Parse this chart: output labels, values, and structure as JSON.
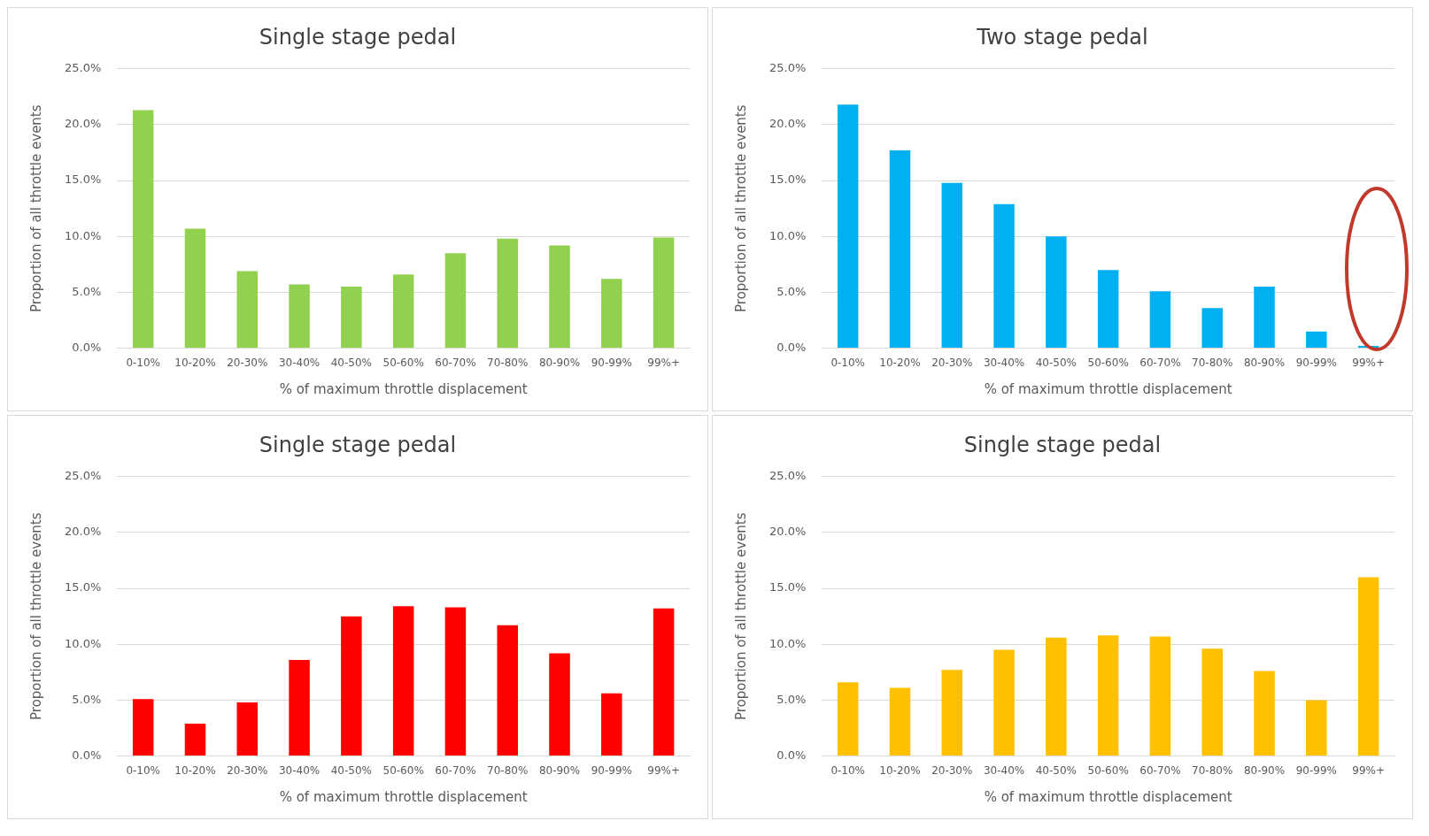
{
  "chart_data": [
    {
      "type": "bar",
      "title": "Single stage pedal",
      "xlabel": "% of maximum throttle displacement",
      "ylabel": "Proportion of all throttle events",
      "categories": [
        "0-10%",
        "10-20%",
        "20-30%",
        "30-40%",
        "40-50%",
        "50-60%",
        "60-70%",
        "70-80%",
        "80-90%",
        "90-99%",
        "99%+"
      ],
      "values": [
        21.3,
        10.7,
        6.9,
        5.7,
        5.5,
        6.6,
        8.5,
        9.8,
        9.2,
        6.2,
        9.9
      ],
      "color": "#92d050",
      "ylim": [
        0,
        25
      ],
      "yticks": [
        {
          "value": 0,
          "label": "0.0%"
        },
        {
          "value": 5,
          "label": "5.0%"
        },
        {
          "value": 10,
          "label": "10.0%"
        },
        {
          "value": 15,
          "label": "15.0%"
        },
        {
          "value": 20,
          "label": "20.0%"
        },
        {
          "value": 25,
          "label": "25.0%"
        }
      ],
      "grid": "y",
      "legend": false
    },
    {
      "type": "bar",
      "title": "Two stage pedal",
      "xlabel": "% of maximum throttle displacement",
      "ylabel": "Proportion of all throttle events",
      "categories": [
        "0-10%",
        "10-20%",
        "20-30%",
        "30-40%",
        "40-50%",
        "50-60%",
        "60-70%",
        "70-80%",
        "80-90%",
        "90-99%",
        "99%+"
      ],
      "values": [
        21.8,
        17.7,
        14.8,
        12.9,
        10.0,
        7.0,
        5.1,
        3.6,
        5.5,
        1.5,
        0.2
      ],
      "color": "#00b0f0",
      "ylim": [
        0,
        25
      ],
      "yticks": [
        {
          "value": 0,
          "label": "0.0%"
        },
        {
          "value": 5,
          "label": "5.0%"
        },
        {
          "value": 10,
          "label": "10.0%"
        },
        {
          "value": 15,
          "label": "15.0%"
        },
        {
          "value": 20,
          "label": "20.0%"
        },
        {
          "value": 25,
          "label": "25.0%"
        }
      ],
      "grid": "y",
      "legend": false
    },
    {
      "type": "bar",
      "title": "Single stage pedal",
      "xlabel": "% of maximum throttle displacement",
      "ylabel": "Proportion of all throttle events",
      "categories": [
        "0-10%",
        "10-20%",
        "20-30%",
        "30-40%",
        "40-50%",
        "50-60%",
        "60-70%",
        "70-80%",
        "80-90%",
        "90-99%",
        "99%+"
      ],
      "values": [
        5.1,
        2.9,
        4.8,
        8.6,
        12.5,
        13.4,
        13.3,
        11.7,
        9.2,
        5.6,
        13.2
      ],
      "color": "#ff0000",
      "ylim": [
        0,
        25
      ],
      "yticks": [
        {
          "value": 0,
          "label": "0.0%"
        },
        {
          "value": 5,
          "label": "5.0%"
        },
        {
          "value": 10,
          "label": "10.0%"
        },
        {
          "value": 15,
          "label": "15.0%"
        },
        {
          "value": 20,
          "label": "20.0%"
        },
        {
          "value": 25,
          "label": "25.0%"
        }
      ],
      "grid": "y",
      "legend": false
    },
    {
      "type": "bar",
      "title": "Single stage pedal",
      "xlabel": "% of maximum throttle displacement",
      "ylabel": "Proportion of all throttle events",
      "categories": [
        "0-10%",
        "10-20%",
        "20-30%",
        "30-40%",
        "40-50%",
        "50-60%",
        "60-70%",
        "70-80%",
        "80-90%",
        "90-99%",
        "99%+"
      ],
      "values": [
        6.6,
        6.1,
        7.7,
        9.5,
        10.6,
        10.8,
        10.7,
        9.6,
        7.6,
        5.0,
        16.0
      ],
      "color": "#ffc000",
      "ylim": [
        0,
        25
      ],
      "yticks": [
        {
          "value": 0,
          "label": "0.0%"
        },
        {
          "value": 5,
          "label": "5.0%"
        },
        {
          "value": 10,
          "label": "10.0%"
        },
        {
          "value": 15,
          "label": "15.0%"
        },
        {
          "value": 20,
          "label": "20.0%"
        },
        {
          "value": 25,
          "label": "25.0%"
        }
      ],
      "grid": "y",
      "legend": false
    }
  ]
}
